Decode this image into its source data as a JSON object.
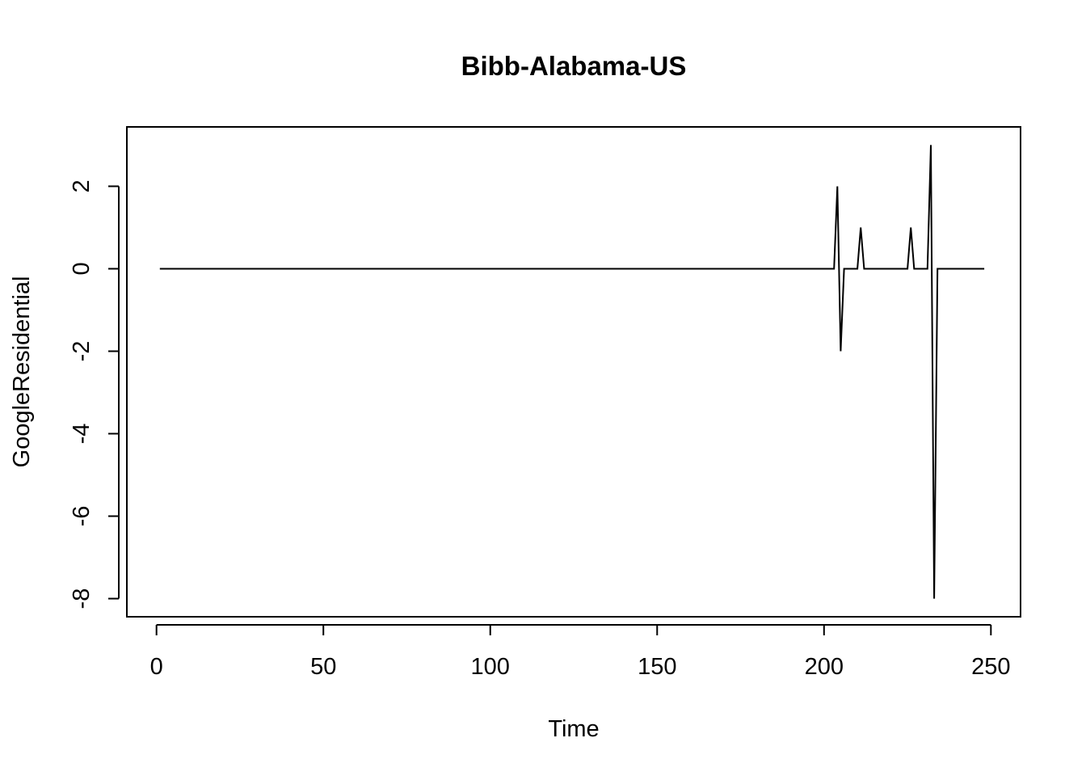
{
  "chart_data": {
    "type": "line",
    "title": "Bibb-Alabama-US",
    "xlabel": "Time",
    "ylabel": "GoogleResidential",
    "xlim": [
      -8.88,
      258.88
    ],
    "ylim": [
      -8.44,
      3.44
    ],
    "x_ticks": [
      0,
      50,
      100,
      150,
      200,
      250
    ],
    "y_ticks": [
      -8,
      -6,
      -4,
      -2,
      0,
      2
    ],
    "grid": false,
    "legend": "none",
    "line_color": "#000000",
    "series": [
      {
        "x": [
          1,
          203,
          204,
          205,
          206,
          210,
          211,
          212,
          225,
          226,
          227,
          231,
          232,
          233,
          234,
          248
        ],
        "y": [
          0,
          0,
          2,
          -2,
          0,
          0,
          1,
          0,
          0,
          1,
          0,
          0,
          3,
          -8,
          0,
          0
        ]
      }
    ]
  }
}
